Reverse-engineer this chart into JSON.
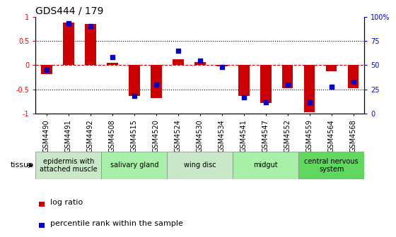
{
  "title": "GDS444 / 179",
  "samples": [
    "GSM4490",
    "GSM4491",
    "GSM4492",
    "GSM4508",
    "GSM4515",
    "GSM4520",
    "GSM4524",
    "GSM4530",
    "GSM4534",
    "GSM4541",
    "GSM4547",
    "GSM4552",
    "GSM4559",
    "GSM4564",
    "GSM4568"
  ],
  "log_ratio": [
    -0.18,
    0.88,
    0.85,
    0.05,
    -0.63,
    -0.68,
    0.12,
    0.06,
    -0.03,
    -0.63,
    -0.78,
    -0.48,
    -0.97,
    -0.12,
    -0.48
  ],
  "percentile": [
    45,
    93,
    90,
    58,
    18,
    30,
    65,
    55,
    48,
    17,
    12,
    30,
    12,
    28,
    33
  ],
  "ylim_left": [
    -1,
    1
  ],
  "ylim_right": [
    0,
    100
  ],
  "yticks_left": [
    -1,
    -0.5,
    0,
    0.5,
    1
  ],
  "ytick_labels_left": [
    "-1",
    "-0.5",
    "0",
    "0.5",
    "1"
  ],
  "yticks_right": [
    0,
    25,
    50,
    75,
    100
  ],
  "ytick_labels_right": [
    "0",
    "25",
    "50",
    "75",
    "100%"
  ],
  "tissue_groups": [
    {
      "label": "epidermis with\nattached muscle",
      "start": 0,
      "end": 3,
      "color": "#c8e8c8"
    },
    {
      "label": "salivary gland",
      "start": 3,
      "end": 6,
      "color": "#a8f0a8"
    },
    {
      "label": "wing disc",
      "start": 6,
      "end": 9,
      "color": "#c8e8c8"
    },
    {
      "label": "midgut",
      "start": 9,
      "end": 12,
      "color": "#a8f0a8"
    },
    {
      "label": "central nervous\nsystem",
      "start": 12,
      "end": 15,
      "color": "#60d860"
    }
  ],
  "bar_color": "#cc0000",
  "dot_color": "#0000cc",
  "zero_line_color": "#cc0000",
  "bg_color": "#ffffff",
  "bar_width": 0.5,
  "dot_size": 25,
  "title_fontsize": 10,
  "axis_tick_fontsize": 7,
  "xlabel_fontsize": 7,
  "legend_fontsize": 8,
  "tissue_fontsize": 7
}
